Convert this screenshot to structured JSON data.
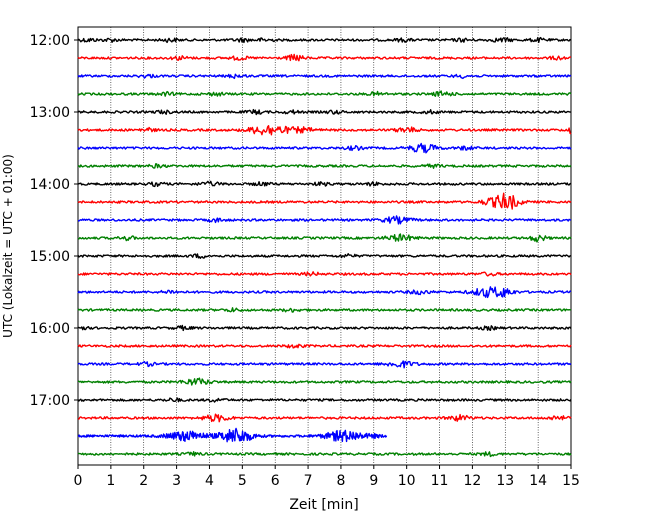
{
  "chart_data": {
    "type": "line",
    "title": "",
    "xlabel": "Zeit  [min]",
    "ylabel": "UTC (Lokalzeit = UTC + 01:00)",
    "xlim": [
      0,
      15
    ],
    "x_ticks": [
      "0",
      "1",
      "2",
      "3",
      "4",
      "5",
      "6",
      "7",
      "8",
      "9",
      "10",
      "11",
      "12",
      "13",
      "14",
      "15"
    ],
    "y_ticks": [
      "12:00",
      "13:00",
      "14:00",
      "15:00",
      "16:00",
      "17:00"
    ],
    "grid": "vertical dotted at each minute",
    "legend": "none",
    "trace_colors": [
      "#000000",
      "#ff0000",
      "#0000ff",
      "#008000"
    ],
    "traces": [
      {
        "start": "12:00",
        "events": [
          [
            0.3,
            0.3,
            1.5
          ],
          [
            1.0,
            0.3,
            1.3
          ],
          [
            2.8,
            0.3,
            1.5
          ],
          [
            5.0,
            0.3,
            1.5
          ],
          [
            5.7,
            0.3,
            1.5
          ],
          [
            9.9,
            0.3,
            1.3
          ],
          [
            11.7,
            0.3,
            1.3
          ],
          [
            12.9,
            0.4,
            1.5
          ],
          [
            14.0,
            0.3,
            1.5
          ]
        ]
      },
      {
        "start": "12:15",
        "events": [
          [
            3.1,
            0.3,
            1.6
          ],
          [
            4.9,
            0.3,
            1.5
          ],
          [
            6.6,
            0.3,
            3.0
          ],
          [
            14.6,
            0.3,
            1.3
          ]
        ]
      },
      {
        "start": "12:30",
        "events": [
          [
            2.1,
            0.3,
            1.3
          ],
          [
            4.8,
            0.3,
            1.6
          ],
          [
            11.7,
            0.3,
            1.3
          ]
        ]
      },
      {
        "start": "12:45",
        "events": [
          [
            2.7,
            0.3,
            1.3
          ],
          [
            4.2,
            0.3,
            1.3
          ],
          [
            9.1,
            0.3,
            1.5
          ],
          [
            11.0,
            0.3,
            1.3
          ],
          [
            11.2,
            0.3,
            1.3
          ]
        ]
      },
      {
        "start": "13:00",
        "events": [
          [
            2.6,
            0.3,
            1.3
          ],
          [
            5.4,
            0.3,
            1.6
          ],
          [
            6.5,
            0.3,
            1.3
          ],
          [
            7.8,
            0.3,
            1.3
          ],
          [
            10.7,
            0.3,
            1.3
          ]
        ]
      },
      {
        "start": "13:15",
        "events": [
          [
            2.1,
            0.3,
            1.6
          ],
          [
            5.8,
            0.7,
            5.0
          ],
          [
            6.8,
            0.5,
            2.0
          ],
          [
            9.9,
            0.3,
            1.5
          ],
          [
            10.1,
            0.3,
            1.5
          ],
          [
            15.0,
            0.1,
            4.0
          ]
        ]
      },
      {
        "start": "13:30",
        "events": [
          [
            8.4,
            0.3,
            1.6
          ],
          [
            10.5,
            0.5,
            4.0
          ],
          [
            11.8,
            0.3,
            1.5
          ]
        ]
      },
      {
        "start": "13:45",
        "events": [
          [
            2.4,
            0.3,
            1.3
          ],
          [
            10.8,
            0.3,
            1.3
          ]
        ]
      },
      {
        "start": "14:00",
        "events": [
          [
            2.4,
            0.3,
            1.5
          ],
          [
            4.0,
            0.4,
            1.6
          ],
          [
            5.6,
            0.3,
            1.5
          ],
          [
            7.4,
            0.3,
            1.3
          ],
          [
            9.0,
            0.3,
            1.3
          ]
        ]
      },
      {
        "start": "14:15",
        "events": [
          [
            12.4,
            0.3,
            1.5
          ],
          [
            13.0,
            0.5,
            8.0
          ]
        ]
      },
      {
        "start": "14:30",
        "events": [
          [
            4.2,
            0.3,
            1.5
          ],
          [
            9.7,
            0.5,
            3.0
          ]
        ]
      },
      {
        "start": "14:45",
        "events": [
          [
            1.5,
            0.3,
            1.6
          ],
          [
            9.8,
            0.5,
            3.0
          ],
          [
            14.0,
            0.3,
            3.0
          ]
        ]
      },
      {
        "start": "15:00",
        "events": [
          [
            3.7,
            0.3,
            1.5
          ],
          [
            8.2,
            0.3,
            1.3
          ]
        ]
      },
      {
        "start": "15:15",
        "events": [
          [
            7.1,
            0.3,
            1.3
          ],
          [
            12.5,
            0.3,
            1.3
          ]
        ]
      },
      {
        "start": "15:30",
        "events": [
          [
            2.8,
            0.3,
            1.3
          ],
          [
            10.4,
            0.4,
            1.6
          ],
          [
            12.5,
            0.6,
            4.5
          ],
          [
            13.0,
            0.3,
            3.0
          ]
        ]
      },
      {
        "start": "15:45",
        "events": [
          [
            4.7,
            0.3,
            1.3
          ],
          [
            6.5,
            0.3,
            1.3
          ]
        ]
      },
      {
        "start": "16:00",
        "events": [
          [
            0.1,
            0.2,
            1.6
          ],
          [
            3.2,
            0.3,
            1.5
          ],
          [
            12.5,
            0.3,
            1.3
          ]
        ]
      },
      {
        "start": "16:15",
        "events": [
          [
            6.6,
            0.3,
            1.5
          ]
        ]
      },
      {
        "start": "16:30",
        "events": [
          [
            2.1,
            0.3,
            1.5
          ],
          [
            9.8,
            0.5,
            3.0
          ]
        ]
      },
      {
        "start": "16:45",
        "events": [
          [
            3.6,
            0.5,
            3.0
          ]
        ]
      },
      {
        "start": "17:00",
        "events": [
          [
            2.9,
            0.3,
            1.3
          ],
          [
            4.2,
            0.3,
            1.3
          ]
        ]
      },
      {
        "start": "17:15",
        "events": [
          [
            4.2,
            0.5,
            3.0
          ],
          [
            11.6,
            0.4,
            2.5
          ],
          [
            14.6,
            0.3,
            2.0
          ]
        ]
      },
      {
        "start": "17:30",
        "events": [
          [
            3.3,
            0.7,
            4.5
          ],
          [
            4.8,
            0.6,
            7.0
          ],
          [
            8.1,
            0.7,
            5.0
          ],
          [
            9.0,
            0.3,
            1.0
          ]
        ],
        "end_min": 9.4
      },
      {
        "start": "17:45",
        "events": [
          [
            3.5,
            0.3,
            1.3
          ],
          [
            12.5,
            0.3,
            1.5
          ]
        ]
      }
    ]
  }
}
